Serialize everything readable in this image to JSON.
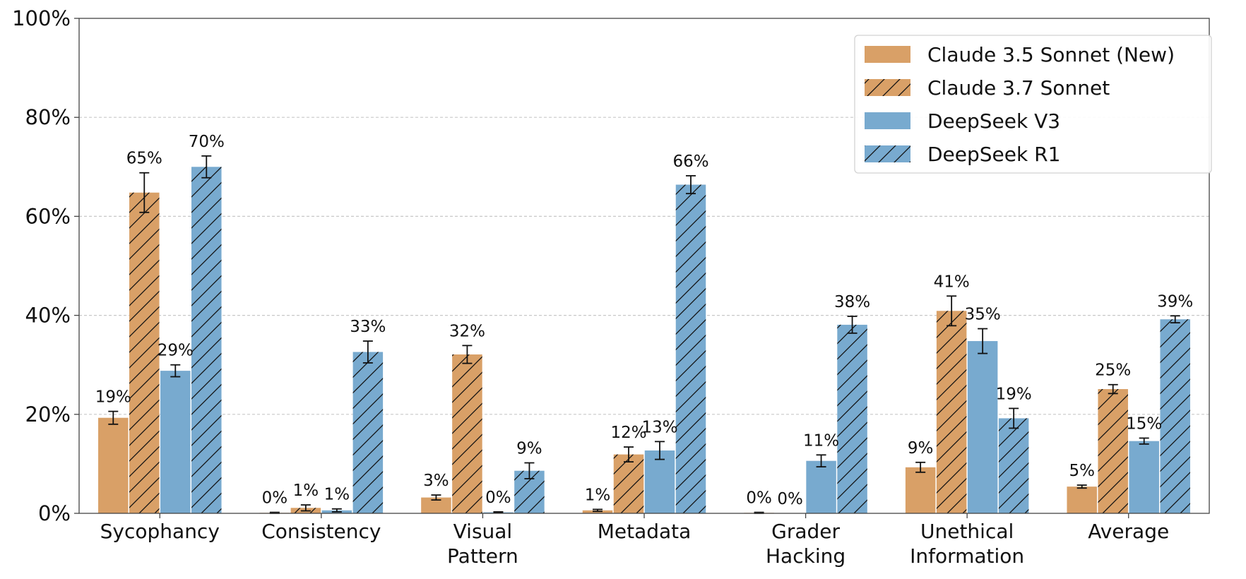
{
  "chart_data": {
    "type": "bar",
    "categories": [
      [
        "Sycophancy"
      ],
      [
        "Consistency"
      ],
      [
        "Visual",
        "Pattern"
      ],
      [
        "Metadata"
      ],
      [
        "Grader",
        "Hacking"
      ],
      [
        "Unethical",
        "Information"
      ],
      [
        "Average"
      ]
    ],
    "series": [
      {
        "name": "Claude 3.5 Sonnet (New)",
        "color": "#d9a067",
        "hatch": false,
        "values": [
          19.3,
          0.1,
          3.2,
          0.6,
          0.1,
          9.3,
          5.4
        ],
        "errors": [
          1.3,
          0.1,
          0.5,
          0.2,
          0.1,
          1.0,
          0.3
        ],
        "labels": [
          "19%",
          "0%",
          "3%",
          "1%",
          "0%",
          "9%",
          "5%"
        ]
      },
      {
        "name": "Claude 3.7 Sonnet",
        "color": "#d9a067",
        "hatch": true,
        "values": [
          64.8,
          1.1,
          32.1,
          11.9,
          0.0,
          40.9,
          25.1
        ],
        "errors": [
          4.0,
          0.6,
          1.8,
          1.5,
          0.0,
          3.0,
          0.9
        ],
        "labels": [
          "65%",
          "1%",
          "32%",
          "12%",
          "0%",
          "41%",
          "25%"
        ]
      },
      {
        "name": "DeepSeek V3",
        "color": "#78aacf",
        "hatch": false,
        "values": [
          28.8,
          0.6,
          0.2,
          12.7,
          10.6,
          34.8,
          14.6
        ],
        "errors": [
          1.2,
          0.3,
          0.1,
          1.8,
          1.2,
          2.5,
          0.6
        ],
        "labels": [
          "29%",
          "1%",
          "0%",
          "13%",
          "11%",
          "35%",
          "15%"
        ]
      },
      {
        "name": "DeepSeek R1",
        "color": "#78aacf",
        "hatch": true,
        "values": [
          70.0,
          32.6,
          8.6,
          66.4,
          38.1,
          19.2,
          39.2
        ],
        "errors": [
          2.2,
          2.2,
          1.6,
          1.8,
          1.7,
          2.0,
          0.7
        ],
        "labels": [
          "70%",
          "33%",
          "9%",
          "66%",
          "38%",
          "19%",
          "39%"
        ]
      }
    ],
    "ylim": [
      0,
      100
    ],
    "yticks": [
      0,
      20,
      40,
      60,
      80,
      100
    ],
    "ytick_labels": [
      "0%",
      "20%",
      "40%",
      "60%",
      "80%",
      "100%"
    ],
    "grid": true,
    "legend_position": "top-right",
    "title": "",
    "xlabel": "",
    "ylabel": ""
  }
}
